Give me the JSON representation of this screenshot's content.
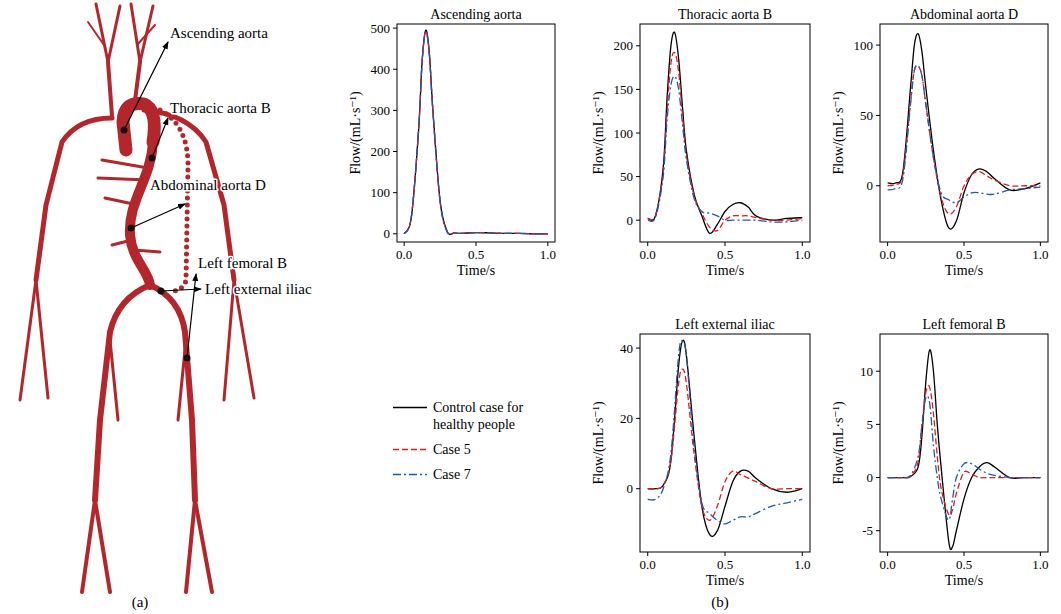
{
  "chart_data": [
    {
      "type": "line",
      "title": "Ascending aorta",
      "xlabel": "Time/s",
      "ylabel": "Flow/(mL·s⁻¹)",
      "grid": false,
      "legend": "left",
      "x": [
        0,
        0.05,
        0.1,
        0.125,
        0.15,
        0.175,
        0.2,
        0.25,
        0.3,
        0.35,
        0.4,
        0.5,
        0.6,
        0.7,
        0.8,
        0.9,
        1.0
      ],
      "series": [
        {
          "name": "Control case for healthy people",
          "color": "#000000",
          "line_style": "solid",
          "values": [
            0,
            40,
            250,
            420,
            495,
            440,
            300,
            80,
            5,
            2,
            1,
            3,
            2,
            1,
            1,
            0,
            0
          ]
        },
        {
          "name": "Case 5",
          "color": "#e41a1c",
          "line_style": "dashed",
          "values": [
            0,
            40,
            250,
            418,
            493,
            438,
            298,
            78,
            5,
            2,
            1,
            3,
            2,
            1,
            1,
            0,
            0
          ]
        },
        {
          "name": "Case 7",
          "color": "#1f5aa6",
          "line_style": "dashdot",
          "values": [
            0,
            42,
            252,
            420,
            490,
            436,
            296,
            78,
            4,
            2,
            1,
            3,
            2,
            1,
            1,
            0,
            0
          ]
        }
      ],
      "xlim": [
        -0.05,
        1.05
      ],
      "ylim": [
        -20,
        510
      ],
      "xticks": [
        {
          "value": 0,
          "label": "0.0"
        },
        {
          "value": 0.5,
          "label": "0.5"
        },
        {
          "value": 1,
          "label": "1.0"
        }
      ],
      "yticks": [
        0,
        100,
        200,
        300,
        400,
        500
      ]
    },
    {
      "type": "line",
      "title": "Thoracic aorta B",
      "xlabel": "Time/s",
      "ylabel": "Flow/(mL·s⁻¹)",
      "grid": false,
      "x": [
        0,
        0.05,
        0.1,
        0.125,
        0.15,
        0.175,
        0.2,
        0.225,
        0.25,
        0.3,
        0.35,
        0.4,
        0.45,
        0.5,
        0.55,
        0.6,
        0.65,
        0.7,
        0.8,
        0.9,
        1.0
      ],
      "series": [
        {
          "name": "Control case for healthy people",
          "color": "#000000",
          "line_style": "solid",
          "values": [
            2,
            5,
            60,
            140,
            200,
            215,
            185,
            130,
            80,
            30,
            5,
            -15,
            -5,
            10,
            18,
            20,
            15,
            5,
            0,
            2,
            3
          ]
        },
        {
          "name": "Case 5",
          "color": "#e41a1c",
          "line_style": "dashed",
          "values": [
            2,
            5,
            55,
            125,
            180,
            192,
            170,
            120,
            75,
            28,
            8,
            -8,
            -12,
            0,
            5,
            5,
            5,
            3,
            0,
            0,
            2
          ]
        },
        {
          "name": "Case 7",
          "color": "#1f5aa6",
          "line_style": "dashdot",
          "values": [
            0,
            3,
            50,
            115,
            155,
            165,
            150,
            110,
            70,
            25,
            10,
            8,
            5,
            0,
            0,
            0,
            0,
            0,
            -2,
            -2,
            0
          ]
        }
      ],
      "xlim": [
        -0.05,
        1.05
      ],
      "ylim": [
        -25,
        225
      ],
      "xticks": [
        {
          "value": 0,
          "label": "0.0"
        },
        {
          "value": 0.5,
          "label": "0.5"
        },
        {
          "value": 1,
          "label": "1.0"
        }
      ],
      "yticks": [
        0,
        50,
        100,
        150,
        200
      ]
    },
    {
      "type": "line",
      "title": "Abdominal aorta D",
      "xlabel": "Time/s",
      "ylabel": "Flow/(mL·s⁻¹)",
      "grid": false,
      "x": [
        0,
        0.05,
        0.1,
        0.15,
        0.175,
        0.2,
        0.225,
        0.25,
        0.3,
        0.35,
        0.4,
        0.45,
        0.5,
        0.55,
        0.6,
        0.65,
        0.7,
        0.8,
        0.9,
        1.0
      ],
      "series": [
        {
          "name": "Control case for healthy people",
          "color": "#000000",
          "line_style": "solid",
          "values": [
            2,
            2,
            10,
            70,
            100,
            108,
            95,
            70,
            25,
            -10,
            -30,
            -25,
            -5,
            8,
            12,
            10,
            5,
            -3,
            -2,
            2
          ]
        },
        {
          "name": "Case 5",
          "color": "#e41a1c",
          "line_style": "dashed",
          "values": [
            0,
            1,
            8,
            60,
            82,
            85,
            78,
            58,
            20,
            -8,
            -20,
            -15,
            0,
            8,
            10,
            7,
            4,
            0,
            0,
            0
          ]
        },
        {
          "name": "Case 7",
          "color": "#1f5aa6",
          "line_style": "dashdot",
          "values": [
            -3,
            -2,
            5,
            58,
            82,
            85,
            78,
            58,
            20,
            -5,
            -10,
            -12,
            -8,
            -5,
            -5,
            -6,
            -6,
            -3,
            -2,
            -1
          ]
        }
      ],
      "xlim": [
        -0.05,
        1.05
      ],
      "ylim": [
        -40,
        115
      ],
      "xticks": [
        {
          "value": 0,
          "label": "0.0"
        },
        {
          "value": 0.5,
          "label": "0.5"
        },
        {
          "value": 1,
          "label": "1.0"
        }
      ],
      "yticks": [
        0,
        50,
        100
      ]
    },
    {
      "type": "line",
      "title": "Left external iliac",
      "xlabel": "Time/s",
      "ylabel": "Flow/(mL·s⁻¹)",
      "grid": false,
      "x": [
        0,
        0.05,
        0.1,
        0.15,
        0.2,
        0.225,
        0.25,
        0.3,
        0.35,
        0.4,
        0.45,
        0.5,
        0.55,
        0.6,
        0.65,
        0.7,
        0.8,
        0.9,
        1.0
      ],
      "series": [
        {
          "name": "Control case for healthy people",
          "color": "#000000",
          "line_style": "solid",
          "values": [
            0,
            0,
            1,
            8,
            35,
            42,
            38,
            15,
            -5,
            -13,
            -12,
            -5,
            2,
            5,
            5,
            3,
            0,
            -1,
            0
          ]
        },
        {
          "name": "Case 5",
          "color": "#e41a1c",
          "line_style": "dashed",
          "values": [
            0,
            0,
            1,
            8,
            30,
            34,
            30,
            10,
            -5,
            -9,
            -5,
            2,
            5,
            4,
            3,
            2,
            0,
            0,
            0
          ]
        },
        {
          "name": "Case 7",
          "color": "#1f5aa6",
          "line_style": "dashdot",
          "values": [
            -3,
            -3,
            0,
            10,
            38,
            42,
            38,
            12,
            -4,
            -7,
            -9,
            -10,
            -9,
            -8,
            -8,
            -7,
            -5,
            -4,
            -3
          ]
        }
      ],
      "xlim": [
        -0.05,
        1.05
      ],
      "ylim": [
        -18,
        44
      ],
      "xticks": [
        {
          "value": 0,
          "label": "0.0"
        },
        {
          "value": 0.5,
          "label": "0.5"
        },
        {
          "value": 1,
          "label": "1.0"
        }
      ],
      "yticks": [
        0,
        20,
        40
      ]
    },
    {
      "type": "line",
      "title": "Left femoral B",
      "xlabel": "Time/s",
      "ylabel": "Flow/(mL·s⁻¹)",
      "grid": false,
      "x": [
        0,
        0.1,
        0.15,
        0.2,
        0.225,
        0.25,
        0.275,
        0.3,
        0.325,
        0.35,
        0.4,
        0.425,
        0.45,
        0.5,
        0.55,
        0.6,
        0.65,
        0.7,
        0.8,
        0.9,
        1.0
      ],
      "series": [
        {
          "name": "Control case for healthy people",
          "color": "#000000",
          "line_style": "solid",
          "values": [
            0,
            0,
            0.1,
            1,
            4,
            9,
            12,
            10,
            5,
            1,
            -6,
            -6.5,
            -5,
            -2,
            0,
            1,
            1.4,
            1,
            0,
            0,
            0
          ]
        },
        {
          "name": "Case 5",
          "color": "#e41a1c",
          "line_style": "dashed",
          "values": [
            0,
            0,
            0.1,
            1.5,
            5,
            8,
            8.5,
            6,
            2,
            -1,
            -3.5,
            -3,
            -1.5,
            0.5,
            0.3,
            0,
            0,
            0,
            0,
            0,
            0
          ]
        },
        {
          "name": "Case 7",
          "color": "#1f5aa6",
          "line_style": "dashdot",
          "values": [
            0,
            0,
            0.2,
            2,
            5,
            7.5,
            7,
            3,
            0,
            -2,
            -4,
            -2,
            0,
            1.3,
            1.3,
            0.8,
            0.4,
            0.2,
            0,
            0,
            0
          ]
        }
      ],
      "xlim": [
        -0.05,
        1.05
      ],
      "ylim": [
        -7,
        13.5
      ],
      "xticks": [
        {
          "value": 0,
          "label": "0.0"
        },
        {
          "value": 0.5,
          "label": "0.5"
        },
        {
          "value": 1,
          "label": "1.0"
        }
      ],
      "yticks": [
        -5,
        0,
        5,
        10
      ]
    }
  ],
  "diagram": {
    "labels": [
      "Ascending aorta",
      "Thoracic aorta B",
      "Abdominal aorta D",
      "Left external iliac",
      "Left femoral B"
    ]
  },
  "panel_labels": [
    "(a)",
    "(b)"
  ]
}
